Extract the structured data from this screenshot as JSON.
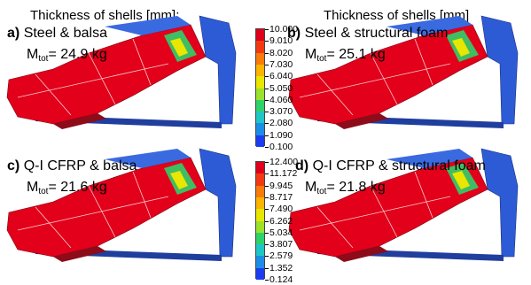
{
  "headers": {
    "left": "Thickness of shells [mm];",
    "right": "Thickness of shells [mm]"
  },
  "labels": {
    "mass_sub": "tot"
  },
  "panels": [
    {
      "letter": "a)",
      "material": "Steel & balsa",
      "mass": "= 24.9 kg"
    },
    {
      "letter": "b)",
      "material": "Steel & structural foam",
      "mass": "= 25.1 kg"
    },
    {
      "letter": "c)",
      "material": "Q-I CFRP & balsa",
      "mass": "= 21.6 kg"
    },
    {
      "letter": "d)",
      "material": "Q-I CFRP & structural foam",
      "mass": "= 21.8 kg"
    }
  ],
  "colorbars": {
    "top": [
      "10.000",
      "9.010",
      "8.020",
      "7.030",
      "6.040",
      "5.050",
      "4.060",
      "3.070",
      "2.080",
      "1.090",
      "0.100"
    ],
    "bottom": [
      "12.400",
      "11.172",
      "9.945",
      "8.717",
      "7.490",
      "6.262",
      "5.034",
      "3.807",
      "2.579",
      "1.352",
      "0.124"
    ],
    "colors": [
      "#e0001b",
      "#f23a12",
      "#fa7a0a",
      "#fbb400",
      "#e9e600",
      "#9be22c",
      "#2fd26a",
      "#1ec6c6",
      "#1d8ee6",
      "#1c3cf0"
    ]
  }
}
